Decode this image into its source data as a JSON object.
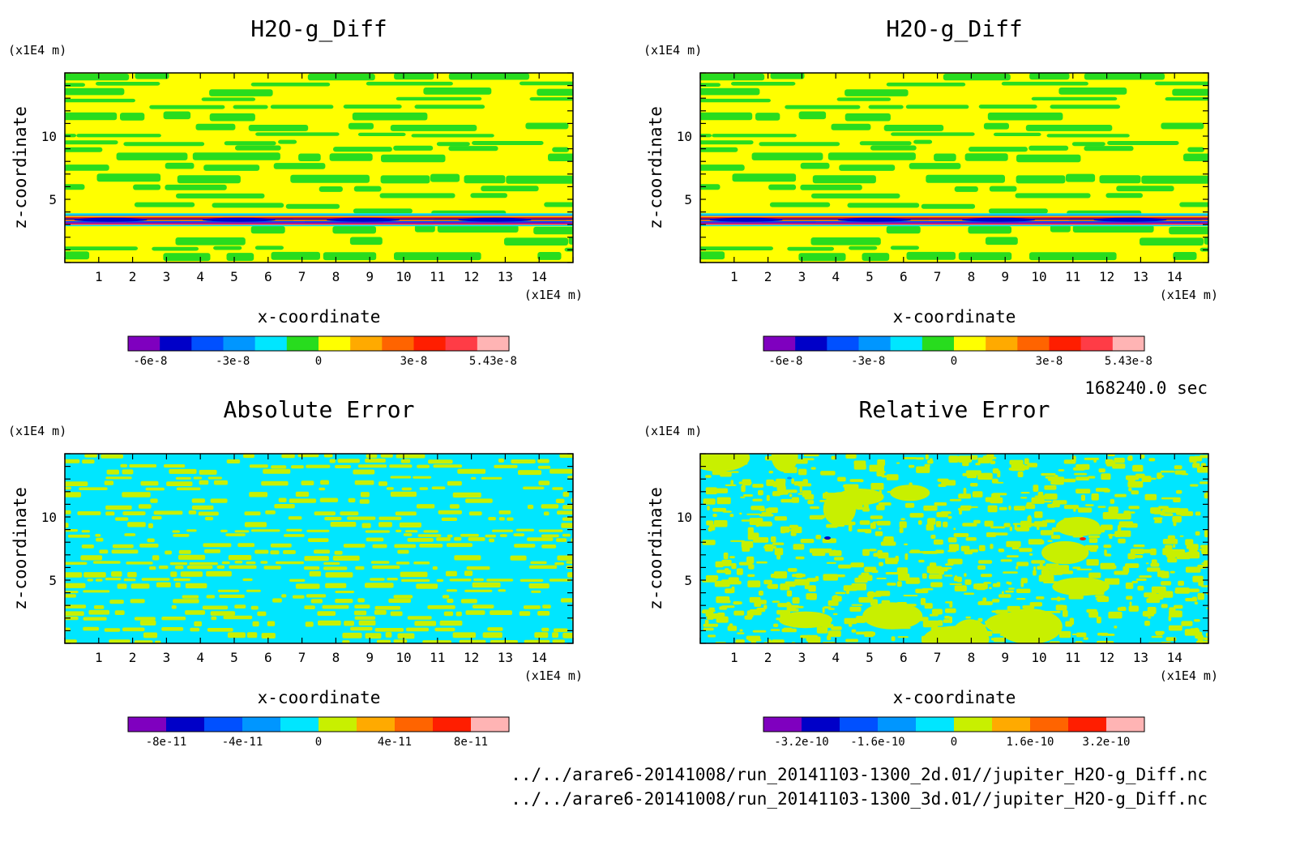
{
  "footer": {
    "time": "168240.0 sec",
    "file1": "../../arare6-20141008/run_20141103-1300_2d.01//jupiter_H2O-g_Diff.nc",
    "file2": "../../arare6-20141008/run_20141103-1300_3d.01//jupiter_H2O-g_Diff.nc"
  },
  "chart_data": [
    {
      "type": "heatmap",
      "title": "H2O-g_Diff",
      "xlabel": "x-coordinate",
      "ylabel": "z-coordinate",
      "x_unit": "(x1E4 m)",
      "y_unit": "(x1E4 m)",
      "xlim": [
        0,
        15
      ],
      "ylim": [
        0,
        15
      ],
      "x_ticks": [
        "1",
        "2",
        "3",
        "4",
        "5",
        "6",
        "7",
        "8",
        "9",
        "10",
        "11",
        "12",
        "13",
        "14"
      ],
      "y_ticks": [
        "5",
        "10"
      ],
      "pattern": "banded",
      "colorbar": {
        "colors": [
          "#7f00bf",
          "#0000c8",
          "#0050ff",
          "#0096ff",
          "#00e6ff",
          "#28dc1e",
          "#ffff00",
          "#ffaa00",
          "#ff6400",
          "#ff1e00",
          "#ff3c46",
          "#ffb4b4"
        ],
        "tick_labels": [
          "-6e-8",
          "-3e-8",
          "0",
          "3e-8",
          "5.43e-8"
        ]
      }
    },
    {
      "type": "heatmap",
      "title": "H2O-g_Diff",
      "xlabel": "x-coordinate",
      "ylabel": "z-coordinate",
      "x_unit": "(x1E4 m)",
      "y_unit": "(x1E4 m)",
      "xlim": [
        0,
        15
      ],
      "ylim": [
        0,
        15
      ],
      "x_ticks": [
        "1",
        "2",
        "3",
        "4",
        "5",
        "6",
        "7",
        "8",
        "9",
        "10",
        "11",
        "12",
        "13",
        "14"
      ],
      "y_ticks": [
        "5",
        "10"
      ],
      "pattern": "banded",
      "colorbar": {
        "colors": [
          "#7f00bf",
          "#0000c8",
          "#0050ff",
          "#0096ff",
          "#00e6ff",
          "#28dc1e",
          "#ffff00",
          "#ffaa00",
          "#ff6400",
          "#ff1e00",
          "#ff3c46",
          "#ffb4b4"
        ],
        "tick_labels": [
          "-6e-8",
          "-3e-8",
          "0",
          "3e-8",
          "5.43e-8"
        ]
      }
    },
    {
      "type": "heatmap",
      "title": "Absolute Error",
      "xlabel": "x-coordinate",
      "ylabel": "z-coordinate",
      "x_unit": "(x1E4 m)",
      "y_unit": "(x1E4 m)",
      "xlim": [
        0,
        15
      ],
      "ylim": [
        0,
        15
      ],
      "x_ticks": [
        "1",
        "2",
        "3",
        "4",
        "5",
        "6",
        "7",
        "8",
        "9",
        "10",
        "11",
        "12",
        "13",
        "14"
      ],
      "y_ticks": [
        "5",
        "10"
      ],
      "pattern": "speckle",
      "colorbar": {
        "colors": [
          "#7f00bf",
          "#0000c8",
          "#0050ff",
          "#0096ff",
          "#00e6ff",
          "#c8f000",
          "#ffaa00",
          "#ff6400",
          "#ff1e00",
          "#ffb4b4"
        ],
        "tick_labels": [
          "-8e-11",
          "-4e-11",
          "0",
          "4e-11",
          "8e-11"
        ]
      }
    },
    {
      "type": "heatmap",
      "title": "Relative Error",
      "xlabel": "x-coordinate",
      "ylabel": "z-coordinate",
      "x_unit": "(x1E4 m)",
      "y_unit": "(x1E4 m)",
      "xlim": [
        0,
        15
      ],
      "ylim": [
        0,
        15
      ],
      "x_ticks": [
        "1",
        "2",
        "3",
        "4",
        "5",
        "6",
        "7",
        "8",
        "9",
        "10",
        "11",
        "12",
        "13",
        "14"
      ],
      "y_ticks": [
        "5",
        "10"
      ],
      "pattern": "patchy",
      "colorbar": {
        "colors": [
          "#7f00bf",
          "#0000c8",
          "#0050ff",
          "#0096ff",
          "#00e6ff",
          "#c8f000",
          "#ffaa00",
          "#ff6400",
          "#ff1e00",
          "#ffb4b4"
        ],
        "tick_labels": [
          "-3.2e-10",
          "-1.6e-10",
          "0",
          "1.6e-10",
          "3.2e-10"
        ]
      }
    }
  ]
}
